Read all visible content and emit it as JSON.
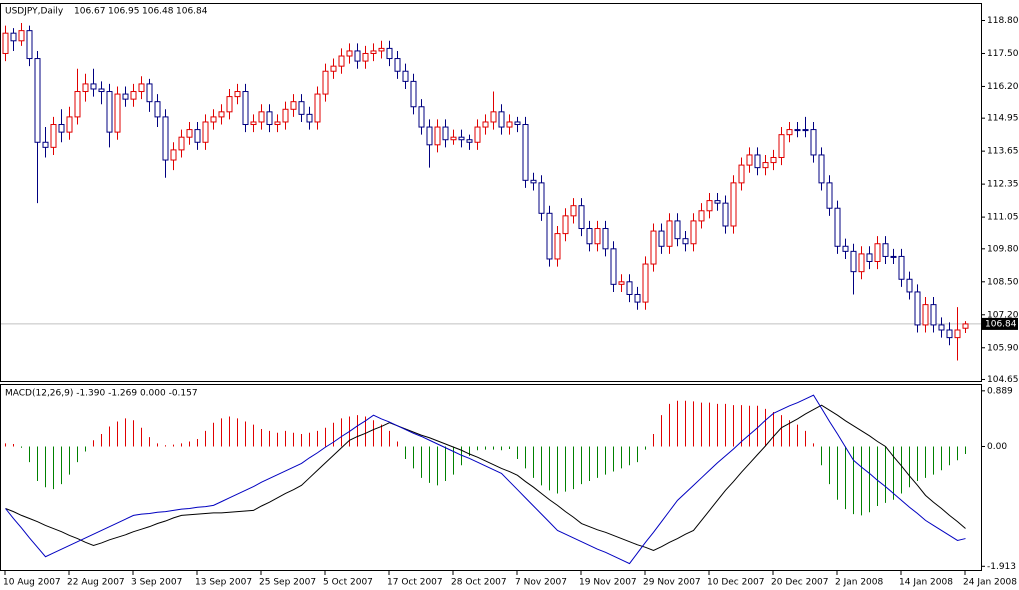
{
  "chart_data": [
    {
      "type": "candlestick",
      "title": "USDJPY,Daily",
      "up_color": "#e00000",
      "down_color": "#000080",
      "price_line_color": "#c0c0c0",
      "ylim": [
        104.57,
        119.47
      ],
      "yticks": [
        {
          "value": 118.8,
          "label": "118.80"
        },
        {
          "value": 117.5,
          "label": "117.50"
        },
        {
          "value": 116.2,
          "label": "116.20"
        },
        114.95,
        113.65,
        112.35,
        111.05,
        {
          "value": 109.8,
          "label": "109.80"
        },
        {
          "value": 108.5,
          "label": "108.50"
        },
        {
          "value": 107.2,
          "label": "107.20"
        },
        {
          "value": 105.9,
          "label": "105.90"
        },
        104.65
      ],
      "categories": [
        "10 Aug 2007",
        null,
        null,
        null,
        null,
        null,
        null,
        null,
        "22 Aug 2007",
        null,
        null,
        null,
        null,
        null,
        null,
        null,
        "3 Sep 2007",
        null,
        null,
        null,
        null,
        null,
        null,
        null,
        "13 Sep 2007",
        null,
        null,
        null,
        null,
        null,
        null,
        null,
        "25 Sep 2007",
        null,
        null,
        null,
        null,
        null,
        null,
        null,
        "5 Oct 2007",
        null,
        null,
        null,
        null,
        null,
        null,
        null,
        "17 Oct 2007",
        null,
        null,
        null,
        null,
        null,
        null,
        null,
        "28 Oct 2007",
        null,
        null,
        null,
        null,
        null,
        null,
        null,
        "7 Nov 2007",
        null,
        null,
        null,
        null,
        null,
        null,
        null,
        "19 Nov 2007",
        null,
        null,
        null,
        null,
        null,
        null,
        null,
        "29 Nov 2007",
        null,
        null,
        null,
        null,
        null,
        null,
        null,
        "10 Dec 2007",
        null,
        null,
        null,
        null,
        null,
        null,
        null,
        "20 Dec 2007",
        null,
        null,
        null,
        null,
        null,
        null,
        null,
        "2 Jan 2008",
        null,
        null,
        null,
        null,
        null,
        null,
        null,
        "14 Jan 2008",
        null,
        null,
        null,
        null,
        null,
        null,
        null,
        "24 Jan 2008"
      ],
      "candles": [
        [
          117.5,
          118.6,
          117.2,
          118.3
        ],
        [
          118.3,
          118.5,
          117.6,
          118.0
        ],
        [
          118.0,
          118.7,
          117.8,
          118.4
        ],
        [
          118.4,
          118.6,
          117.0,
          117.3
        ],
        [
          117.3,
          117.6,
          111.6,
          114.0
        ],
        [
          114.0,
          114.6,
          113.4,
          113.8
        ],
        [
          113.8,
          115.0,
          113.5,
          114.7
        ],
        [
          114.7,
          115.3,
          114.0,
          114.4
        ],
        [
          114.4,
          115.4,
          114.1,
          115.0
        ],
        [
          115.0,
          116.9,
          114.7,
          116.0
        ],
        [
          116.0,
          116.7,
          115.6,
          116.3
        ],
        [
          116.3,
          116.9,
          115.8,
          116.1
        ],
        [
          116.1,
          116.4,
          115.5,
          116.0
        ],
        [
          116.0,
          116.3,
          113.8,
          114.4
        ],
        [
          114.4,
          116.2,
          114.1,
          115.9
        ],
        [
          115.9,
          116.2,
          115.4,
          115.7
        ],
        [
          115.7,
          116.3,
          115.4,
          116.0
        ],
        [
          116.0,
          116.6,
          115.7,
          116.3
        ],
        [
          116.3,
          116.5,
          115.2,
          115.6
        ],
        [
          115.6,
          115.9,
          114.6,
          115.0
        ],
        [
          115.0,
          115.3,
          112.6,
          113.3
        ],
        [
          113.3,
          114.0,
          112.9,
          113.7
        ],
        [
          113.7,
          114.5,
          113.4,
          114.2
        ],
        [
          114.2,
          114.8,
          113.9,
          114.5
        ],
        [
          114.5,
          114.8,
          113.7,
          114.0
        ],
        [
          114.0,
          115.1,
          113.7,
          114.8
        ],
        [
          114.8,
          115.3,
          114.5,
          115.0
        ],
        [
          115.0,
          115.5,
          114.7,
          115.2
        ],
        [
          115.2,
          116.1,
          114.9,
          115.8
        ],
        [
          115.8,
          116.3,
          115.5,
          116.0
        ],
        [
          116.0,
          116.3,
          114.4,
          114.7
        ],
        [
          114.7,
          115.1,
          114.4,
          114.8
        ],
        [
          114.8,
          115.5,
          114.5,
          115.2
        ],
        [
          115.2,
          115.5,
          114.4,
          114.7
        ],
        [
          114.7,
          115.1,
          114.4,
          114.8
        ],
        [
          114.8,
          115.6,
          114.5,
          115.3
        ],
        [
          115.3,
          115.9,
          115.0,
          115.6
        ],
        [
          115.6,
          115.9,
          114.8,
          115.1
        ],
        [
          115.1,
          115.4,
          114.5,
          114.8
        ],
        [
          114.8,
          116.2,
          114.5,
          115.9
        ],
        [
          115.9,
          117.1,
          115.6,
          116.8
        ],
        [
          116.8,
          117.3,
          116.5,
          117.0
        ],
        [
          117.0,
          117.7,
          116.7,
          117.4
        ],
        [
          117.4,
          117.9,
          117.1,
          117.6
        ],
        [
          117.6,
          117.9,
          116.9,
          117.2
        ],
        [
          117.2,
          117.8,
          116.9,
          117.5
        ],
        [
          117.5,
          117.9,
          117.2,
          117.6
        ],
        [
          117.6,
          118.0,
          117.3,
          117.7
        ],
        [
          117.7,
          118.0,
          117.0,
          117.3
        ],
        [
          117.3,
          117.6,
          116.5,
          116.8
        ],
        [
          116.8,
          117.1,
          116.1,
          116.4
        ],
        [
          116.4,
          116.7,
          115.1,
          115.4
        ],
        [
          115.4,
          115.7,
          114.3,
          114.6
        ],
        [
          114.6,
          114.9,
          113.0,
          113.9
        ],
        [
          113.9,
          114.9,
          113.6,
          114.6
        ],
        [
          114.6,
          114.9,
          113.8,
          114.1
        ],
        [
          114.1,
          114.5,
          113.9,
          114.2
        ],
        [
          114.2,
          114.5,
          113.8,
          114.1
        ],
        [
          114.1,
          114.3,
          113.7,
          114.0
        ],
        [
          114.0,
          114.9,
          113.7,
          114.6
        ],
        [
          114.6,
          115.1,
          114.3,
          114.8
        ],
        [
          114.8,
          116.0,
          114.5,
          115.2
        ],
        [
          115.2,
          115.5,
          114.3,
          114.6
        ],
        [
          114.6,
          115.1,
          114.3,
          114.8
        ],
        [
          114.8,
          115.0,
          114.4,
          114.7
        ],
        [
          114.7,
          115.0,
          112.2,
          112.5
        ],
        [
          112.5,
          112.8,
          112.1,
          112.4
        ],
        [
          112.4,
          112.7,
          110.9,
          111.2
        ],
        [
          111.2,
          111.5,
          109.1,
          109.4
        ],
        [
          109.4,
          110.7,
          109.1,
          110.4
        ],
        [
          110.4,
          111.4,
          110.1,
          111.1
        ],
        [
          111.1,
          111.8,
          110.8,
          111.5
        ],
        [
          111.5,
          111.8,
          110.3,
          110.6
        ],
        [
          110.6,
          110.9,
          109.7,
          110.0
        ],
        [
          110.0,
          110.9,
          109.7,
          110.6
        ],
        [
          110.6,
          110.9,
          109.5,
          109.8
        ],
        [
          109.8,
          110.1,
          108.1,
          108.4
        ],
        [
          108.4,
          108.8,
          108.1,
          108.5
        ],
        [
          108.5,
          108.8,
          107.7,
          108.0
        ],
        [
          108.0,
          108.3,
          107.4,
          107.7
        ],
        [
          107.7,
          109.5,
          107.4,
          109.2
        ],
        [
          109.2,
          110.8,
          108.9,
          110.5
        ],
        [
          110.5,
          110.8,
          109.6,
          109.9
        ],
        [
          109.9,
          111.2,
          109.6,
          110.9
        ],
        [
          110.9,
          111.2,
          109.9,
          110.2
        ],
        [
          110.2,
          110.5,
          109.7,
          110.0
        ],
        [
          110.0,
          111.2,
          109.7,
          110.9
        ],
        [
          110.9,
          111.6,
          110.6,
          111.3
        ],
        [
          111.3,
          112.0,
          111.0,
          111.7
        ],
        [
          111.7,
          112.0,
          111.3,
          111.6
        ],
        [
          111.6,
          111.9,
          110.4,
          110.7
        ],
        [
          110.7,
          112.7,
          110.4,
          112.4
        ],
        [
          112.4,
          113.4,
          112.1,
          113.1
        ],
        [
          113.1,
          113.8,
          112.8,
          113.5
        ],
        [
          113.5,
          113.8,
          112.7,
          113.0
        ],
        [
          113.0,
          113.5,
          112.7,
          113.2
        ],
        [
          113.2,
          113.7,
          112.9,
          113.4
        ],
        [
          113.4,
          114.6,
          113.1,
          114.3
        ],
        [
          114.3,
          114.8,
          114.0,
          114.5
        ],
        [
          114.5,
          114.8,
          114.2,
          114.5
        ],
        [
          114.5,
          115.0,
          114.2,
          114.5
        ],
        [
          114.5,
          114.8,
          113.2,
          113.5
        ],
        [
          113.5,
          113.8,
          112.1,
          112.4
        ],
        [
          112.4,
          112.7,
          111.1,
          111.4
        ],
        [
          111.4,
          111.7,
          109.6,
          109.9
        ],
        [
          109.9,
          110.2,
          109.4,
          109.7
        ],
        [
          109.7,
          110.0,
          108.0,
          108.9
        ],
        [
          108.9,
          109.9,
          108.6,
          109.6
        ],
        [
          109.6,
          109.9,
          109.0,
          109.3
        ],
        [
          109.3,
          110.3,
          109.0,
          110.0
        ],
        [
          110.0,
          110.3,
          109.2,
          109.5
        ],
        [
          109.5,
          109.8,
          109.2,
          109.5
        ],
        [
          109.5,
          109.8,
          108.3,
          108.6
        ],
        [
          108.6,
          108.9,
          107.8,
          108.1
        ],
        [
          108.1,
          108.4,
          106.5,
          106.8
        ],
        [
          106.8,
          107.9,
          106.5,
          107.6
        ],
        [
          107.6,
          107.9,
          106.5,
          106.8
        ],
        [
          106.8,
          107.1,
          106.3,
          106.6
        ],
        [
          106.6,
          106.9,
          106.0,
          106.3
        ],
        [
          106.3,
          107.5,
          105.4,
          106.6
        ],
        [
          106.67,
          106.95,
          106.48,
          106.84
        ]
      ]
    },
    {
      "type": "macd",
      "title": "MACD(12,26,9) -1.390 -1.269 0.000 -0.157",
      "histogram_up_color": "#e00000",
      "histogram_down_color": "#008000",
      "macd_color": "#0000c0",
      "signal_color": "#000000",
      "ylim": [
        -1.98,
        0.99
      ],
      "yticks": [
        0.889,
        {
          "value": 0,
          "label": "0.00"
        },
        -1.913
      ],
      "histogram": [
        0.05,
        0.04,
        -0.02,
        -0.25,
        -0.55,
        -0.65,
        -0.68,
        -0.6,
        -0.45,
        -0.25,
        -0.08,
        0.1,
        0.2,
        0.32,
        0.4,
        0.45,
        0.42,
        0.3,
        0.15,
        0.05,
        0.02,
        0.03,
        0.05,
        0.08,
        0.12,
        0.25,
        0.38,
        0.45,
        0.48,
        0.45,
        0.4,
        0.35,
        0.28,
        0.25,
        0.22,
        0.25,
        0.22,
        0.2,
        0.22,
        0.25,
        0.3,
        0.38,
        0.45,
        0.48,
        0.5,
        0.48,
        0.42,
        0.35,
        0.25,
        0.08,
        -0.2,
        -0.35,
        -0.5,
        -0.58,
        -0.62,
        -0.55,
        -0.45,
        -0.3,
        -0.15,
        -0.06,
        -0.05,
        -0.05,
        -0.06,
        -0.04,
        -0.2,
        -0.35,
        -0.5,
        -0.62,
        -0.7,
        -0.75,
        -0.72,
        -0.68,
        -0.6,
        -0.55,
        -0.5,
        -0.45,
        -0.4,
        -0.35,
        -0.3,
        -0.25,
        -0.05,
        0.2,
        0.5,
        0.68,
        0.73,
        0.73,
        0.72,
        0.7,
        0.7,
        0.68,
        0.68,
        0.66,
        0.66,
        0.65,
        0.65,
        0.6,
        0.55,
        0.5,
        0.42,
        0.35,
        0.25,
        0.05,
        -0.3,
        -0.6,
        -0.85,
        -1.0,
        -1.08,
        -1.1,
        -1.05,
        -0.95,
        -0.9,
        -0.85,
        -0.75,
        -0.65,
        -0.55,
        -0.5,
        -0.45,
        -0.38,
        -0.3,
        -0.22,
        -0.12
      ],
      "macd": [
        -0.99,
        -1.15,
        -1.3,
        -1.46,
        -1.61,
        -1.76,
        -1.7,
        -1.64,
        -1.58,
        -1.52,
        -1.46,
        -1.4,
        -1.34,
        -1.28,
        -1.22,
        -1.16,
        -1.1,
        -1.08,
        -1.07,
        -1.05,
        -1.04,
        -1.02,
        -1.0,
        -0.99,
        -0.97,
        -0.96,
        -0.94,
        -0.88,
        -0.82,
        -0.76,
        -0.7,
        -0.64,
        -0.57,
        -0.51,
        -0.45,
        -0.39,
        -0.33,
        -0.27,
        -0.18,
        -0.1,
        -0.01,
        0.07,
        0.16,
        0.24,
        0.33,
        0.41,
        0.5,
        0.44,
        0.39,
        0.33,
        0.27,
        0.21,
        0.16,
        0.1,
        0.04,
        -0.02,
        -0.08,
        -0.14,
        -0.19,
        -0.25,
        -0.31,
        -0.37,
        -0.43,
        -0.56,
        -0.69,
        -0.82,
        -0.95,
        -1.08,
        -1.21,
        -1.34,
        -1.4,
        -1.46,
        -1.52,
        -1.58,
        -1.64,
        -1.69,
        -1.75,
        -1.81,
        -1.87,
        -1.7,
        -1.53,
        -1.37,
        -1.2,
        -1.03,
        -0.86,
        -0.74,
        -0.62,
        -0.5,
        -0.38,
        -0.26,
        -0.15,
        -0.04,
        0.08,
        0.19,
        0.3,
        0.42,
        0.53,
        0.59,
        0.65,
        0.7,
        0.76,
        0.82,
        0.61,
        0.4,
        0.2,
        -0.01,
        -0.22,
        -0.33,
        -0.43,
        -0.54,
        -0.64,
        -0.75,
        -0.86,
        -0.97,
        -1.07,
        -1.18,
        -1.26,
        -1.34,
        -1.42,
        -1.5,
        -1.47
      ],
      "signal": [
        -0.99,
        -1.04,
        -1.1,
        -1.15,
        -1.2,
        -1.26,
        -1.31,
        -1.36,
        -1.42,
        -1.47,
        -1.53,
        -1.58,
        -1.54,
        -1.49,
        -1.45,
        -1.41,
        -1.36,
        -1.32,
        -1.28,
        -1.23,
        -1.19,
        -1.14,
        -1.1,
        -1.09,
        -1.08,
        -1.07,
        -1.06,
        -1.06,
        -1.05,
        -1.04,
        -1.03,
        -1.02,
        -0.95,
        -0.89,
        -0.82,
        -0.75,
        -0.69,
        -0.62,
        -0.5,
        -0.38,
        -0.26,
        -0.14,
        -0.02,
        0.1,
        0.16,
        0.21,
        0.27,
        0.32,
        0.38,
        0.33,
        0.28,
        0.23,
        0.18,
        0.14,
        0.09,
        0.04,
        -0.01,
        -0.06,
        -0.12,
        -0.17,
        -0.23,
        -0.29,
        -0.35,
        -0.4,
        -0.46,
        -0.56,
        -0.65,
        -0.75,
        -0.85,
        -0.94,
        -1.04,
        -1.13,
        -1.23,
        -1.28,
        -1.33,
        -1.37,
        -1.42,
        -1.47,
        -1.52,
        -1.57,
        -1.61,
        -1.66,
        -1.6,
        -1.53,
        -1.47,
        -1.4,
        -1.34,
        -1.18,
        -1.02,
        -0.86,
        -0.7,
        -0.56,
        -0.41,
        -0.27,
        -0.13,
        0.01,
        0.16,
        0.3,
        0.37,
        0.44,
        0.52,
        0.59,
        0.66,
        0.58,
        0.5,
        0.41,
        0.33,
        0.25,
        0.17,
        0.08,
        0.0,
        -0.16,
        -0.31,
        -0.47,
        -0.62,
        -0.78,
        -0.89,
        -0.99,
        -1.1,
        -1.2,
        -1.31
      ]
    }
  ]
}
